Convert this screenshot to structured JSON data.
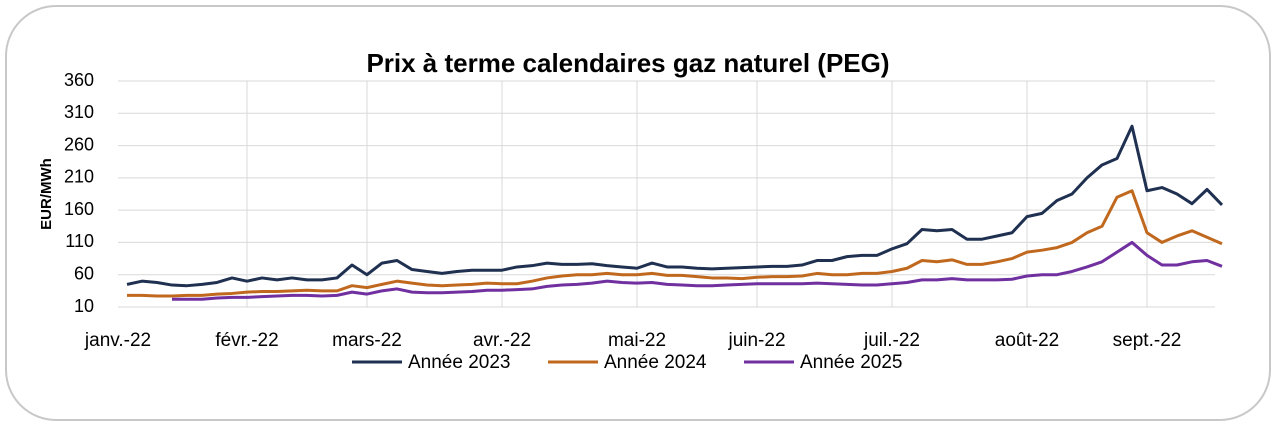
{
  "chart_data": {
    "type": "line",
    "title": "Prix à terme calendaires gaz naturel (PEG)",
    "y_label": "EUR/MWh",
    "categories": [
      "janv.-22",
      null,
      null,
      null,
      null,
      null,
      null,
      null,
      "févr.-22",
      null,
      null,
      null,
      null,
      null,
      null,
      null,
      "mars-22",
      null,
      null,
      null,
      null,
      null,
      null,
      null,
      null,
      "avr.-22",
      null,
      null,
      null,
      null,
      null,
      null,
      null,
      null,
      "mai-22",
      null,
      null,
      null,
      null,
      null,
      null,
      null,
      "juin-22",
      null,
      null,
      null,
      null,
      null,
      null,
      null,
      null,
      "juil.-22",
      null,
      null,
      null,
      null,
      null,
      null,
      null,
      null,
      "août-22",
      null,
      null,
      null,
      null,
      null,
      null,
      null,
      "sept.-22",
      null,
      null,
      null,
      null,
      null
    ],
    "series": [
      {
        "name": "Année 2023",
        "color": "#1f3050",
        "values": [
          45,
          50,
          48,
          44,
          43,
          45,
          48,
          55,
          50,
          55,
          52,
          55,
          52,
          52,
          55,
          75,
          60,
          78,
          82,
          68,
          65,
          62,
          65,
          67,
          67,
          67,
          72,
          74,
          78,
          76,
          76,
          77,
          74,
          72,
          70,
          78,
          72,
          72,
          70,
          69,
          70,
          71,
          72,
          73,
          73,
          75,
          82,
          82,
          88,
          90,
          90,
          100,
          108,
          130,
          128,
          130,
          115,
          115,
          120,
          125,
          150,
          155,
          175,
          185,
          210,
          230,
          240,
          290,
          190,
          195,
          185,
          170,
          192,
          168
        ]
      },
      {
        "name": "Année 2024",
        "color": "#c0691e",
        "values": [
          28,
          28,
          27,
          27,
          28,
          28,
          30,
          31,
          33,
          34,
          34,
          35,
          36,
          35,
          35,
          43,
          40,
          45,
          50,
          47,
          44,
          43,
          44,
          45,
          47,
          46,
          46,
          50,
          55,
          58,
          60,
          60,
          62,
          60,
          60,
          62,
          59,
          59,
          57,
          55,
          55,
          54,
          56,
          57,
          57,
          58,
          62,
          60,
          60,
          62,
          62,
          65,
          70,
          82,
          80,
          83,
          76,
          76,
          80,
          85,
          95,
          98,
          102,
          110,
          125,
          135,
          180,
          190,
          125,
          110,
          120,
          128,
          118,
          108
        ]
      },
      {
        "name": "Année 2025",
        "color": "#7030a0",
        "values": [
          null,
          null,
          null,
          22,
          22,
          22,
          24,
          25,
          25,
          26,
          27,
          28,
          28,
          27,
          28,
          33,
          30,
          35,
          38,
          33,
          32,
          32,
          33,
          34,
          36,
          36,
          37,
          38,
          42,
          44,
          45,
          47,
          50,
          48,
          47,
          48,
          45,
          44,
          43,
          43,
          44,
          45,
          46,
          46,
          46,
          46,
          47,
          46,
          45,
          44,
          44,
          46,
          48,
          52,
          52,
          54,
          52,
          52,
          52,
          53,
          58,
          60,
          60,
          65,
          72,
          80,
          95,
          110,
          90,
          75,
          75,
          80,
          82,
          73
        ]
      }
    ],
    "ylim": [
      10,
      360
    ],
    "yticks": [
      10,
      60,
      110,
      160,
      210,
      260,
      310,
      360
    ],
    "grid": true,
    "legend": "bottom"
  }
}
